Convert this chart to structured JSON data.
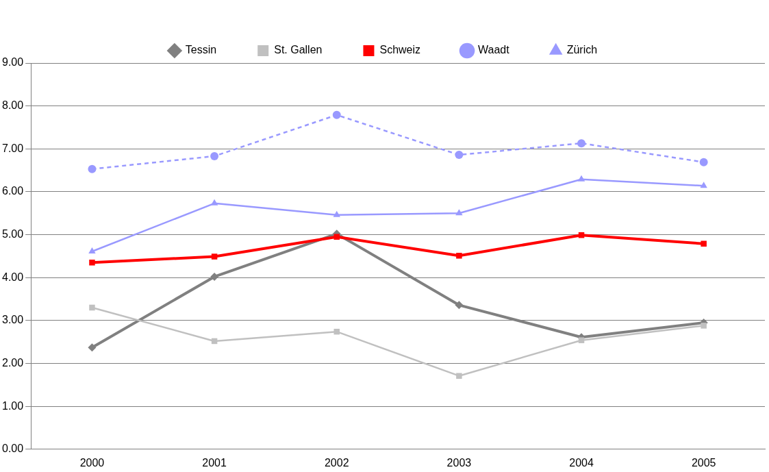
{
  "chart_data": {
    "type": "line",
    "categories": [
      "2000",
      "2001",
      "2002",
      "2003",
      "2004",
      "2005"
    ],
    "series": [
      {
        "name": "Tessin",
        "color": "#808080",
        "marker": "diamond",
        "line_style": "solid",
        "values": [
          2.37,
          4.02,
          5.02,
          3.36,
          2.61,
          2.95
        ]
      },
      {
        "name": "St. Gallen",
        "color": "#c0c0c0",
        "marker": "square",
        "line_style": "solid",
        "values": [
          3.3,
          2.52,
          2.74,
          1.71,
          2.54,
          2.88
        ]
      },
      {
        "name": "Schweiz",
        "color": "#ff0000",
        "marker": "square",
        "line_style": "solid",
        "values": [
          4.35,
          4.49,
          4.95,
          4.51,
          4.99,
          4.79
        ]
      },
      {
        "name": "Waadt",
        "color": "#9999ff",
        "marker": "circle",
        "line_style": "dashed",
        "values": [
          6.53,
          6.83,
          7.79,
          6.86,
          7.13,
          6.69
        ]
      },
      {
        "name": "Zürich",
        "color": "#9999ff",
        "marker": "triangle",
        "line_style": "solid",
        "values": [
          4.61,
          5.73,
          5.46,
          5.5,
          6.29,
          6.14
        ]
      }
    ],
    "ylim": [
      0,
      9
    ],
    "yticks": [
      {
        "value": 0,
        "label": "0.00"
      },
      {
        "value": 1,
        "label": "1.00"
      },
      {
        "value": 2,
        "label": "2.00"
      },
      {
        "value": 3,
        "label": "3.00"
      },
      {
        "value": 4,
        "label": "4.00"
      },
      {
        "value": 5,
        "label": "5.00"
      },
      {
        "value": 6,
        "label": "6.00"
      },
      {
        "value": 7,
        "label": "7.00"
      },
      {
        "value": 8,
        "label": "8.00"
      },
      {
        "value": 9,
        "label": "9.00"
      }
    ],
    "grid": "y",
    "legend": "top"
  }
}
